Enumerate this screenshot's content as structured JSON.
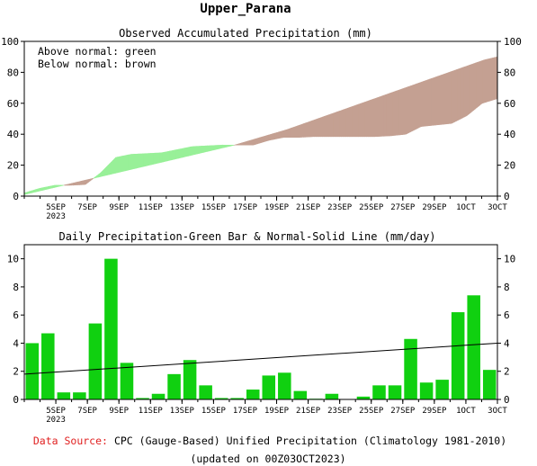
{
  "title": "Upper_Parana",
  "chart_data": [
    {
      "type": "area",
      "title": "Observed Accumulated Precipitation (mm)",
      "legend": [
        "Above normal: green",
        "Below normal: brown"
      ],
      "colors": {
        "above": "#98f098",
        "below": "#c4a092"
      },
      "ylim": [
        0,
        100
      ],
      "yticks": [
        0,
        20,
        40,
        60,
        80,
        100
      ],
      "xticks": [
        "5SEP",
        "7SEP",
        "9SEP",
        "11SEP",
        "13SEP",
        "15SEP",
        "17SEP",
        "19SEP",
        "21SEP",
        "23SEP",
        "25SEP",
        "27SEP",
        "29SEP",
        "1OCT",
        "3OCT"
      ],
      "year_label": "2023",
      "x_start": "3SEP",
      "x_end": "3OCT",
      "observed": [
        2,
        5,
        7,
        7,
        7.5,
        15,
        25,
        27,
        27.5,
        28,
        30,
        32,
        32.5,
        33,
        33,
        33,
        36,
        38,
        38,
        38.5,
        38.5,
        38.5,
        38.5,
        38.5,
        39,
        40,
        45,
        46,
        47,
        52,
        60,
        63
      ],
      "normal": [
        1,
        3,
        5,
        7,
        9,
        11,
        13,
        15,
        17,
        19,
        21,
        23,
        25,
        27,
        29,
        31,
        33,
        35.5,
        38,
        40.5,
        43,
        46,
        49,
        52,
        55,
        58,
        61,
        64,
        67,
        70,
        73,
        76,
        79,
        82,
        85,
        88,
        90
      ]
    },
    {
      "type": "bar",
      "title": "Daily Precipitation-Green Bar & Normal-Solid Line (mm/day)",
      "colors": {
        "bar": "#10d010",
        "line": "#000000"
      },
      "ylim": [
        0,
        11
      ],
      "yticks": [
        0,
        2,
        4,
        6,
        8,
        10
      ],
      "xticks": [
        "5SEP",
        "7SEP",
        "9SEP",
        "11SEP",
        "13SEP",
        "15SEP",
        "17SEP",
        "19SEP",
        "21SEP",
        "23SEP",
        "25SEP",
        "27SEP",
        "29SEP",
        "1OCT",
        "3OCT"
      ],
      "year_label": "2023",
      "x_start": "3SEP",
      "x_end": "3OCT",
      "values": [
        4.0,
        4.7,
        0.5,
        0.5,
        5.4,
        10.0,
        2.6,
        0.1,
        0.4,
        1.8,
        2.8,
        1.0,
        0.1,
        0.1,
        0.7,
        1.7,
        1.9,
        0.6,
        0.05,
        0.4,
        0.0,
        0.2,
        1.0,
        1.0,
        4.3,
        1.2,
        1.4,
        6.2,
        7.4,
        2.1
      ],
      "normal_line": [
        1.8,
        4.0
      ]
    }
  ],
  "footer": {
    "source_label": "Data Source:",
    "source_text": "CPC (Gauge-Based) Unified Precipitation (Climatology 1981-2010)",
    "updated": "(updated on 00Z03OCT2023)"
  }
}
